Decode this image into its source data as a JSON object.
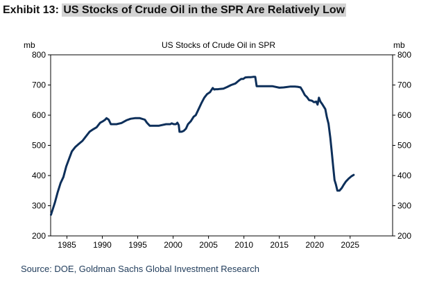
{
  "exhibit": {
    "label": "Exhibit 13:",
    "title": "US Stocks of Crude Oil in the SPR Are Relatively Low"
  },
  "source": "Source: DOE, Goldman Sachs Global Investment Research",
  "colors": {
    "line": "#0d2f5a",
    "axis": "#000000"
  },
  "chart_data": {
    "type": "line",
    "title": "US Stocks of Crude Oil in SPR",
    "ylabel_left": "mb",
    "ylabel_right": "mb",
    "xlim": [
      1982.7,
      2031
    ],
    "ylim": [
      200,
      800
    ],
    "yticks": [
      200,
      300,
      400,
      500,
      600,
      700,
      800
    ],
    "xticks": [
      1985,
      1990,
      1995,
      2000,
      2005,
      2010,
      2015,
      2020,
      2025
    ],
    "grid": false,
    "legend": "none",
    "series": [
      {
        "x": [
          1982.75,
          1983.3,
          1983.7,
          1984.1,
          1984.5,
          1984.9,
          1985.3,
          1985.7,
          1986.2,
          1986.7,
          1987.2,
          1987.7,
          1988.2,
          1988.7,
          1989.2,
          1989.7,
          1990.1,
          1990.4,
          1990.6,
          1990.9,
          1991.2,
          1992.0,
          1992.7,
          1993.4,
          1994.0,
          1994.6,
          1995.3,
          1996.0,
          1996.3,
          1996.7,
          1997.0,
          1997.4,
          1998.0,
          1999.0,
          1999.6,
          1999.8,
          2000.1,
          2000.4,
          2000.6,
          2000.8,
          2000.9,
          2001.2,
          2001.5,
          2001.8,
          2002.1,
          2002.5,
          2002.9,
          2003.2,
          2003.6,
          2004.0,
          2004.4,
          2004.8,
          2005.2,
          2005.6,
          2005.8,
          2006.0,
          2006.3,
          2006.6,
          2007.1,
          2007.6,
          2008.2,
          2008.8,
          2009.3,
          2009.6,
          2009.9,
          2010.2,
          2010.6,
          2011.0,
          2011.3,
          2011.6,
          2011.8,
          2012.3,
          2013.0,
          2014.0,
          2015.0,
          2015.6,
          2016.0,
          2016.6,
          2017.2,
          2017.6,
          2018.0,
          2018.3,
          2018.6,
          2018.9,
          2019.2,
          2019.6,
          2019.9,
          2020.2,
          2020.4,
          2020.6,
          2020.8,
          2021.1,
          2021.5,
          2021.7,
          2021.95,
          2022.2,
          2022.4,
          2022.6,
          2022.8,
          2023.0,
          2023.2,
          2023.5,
          2023.8,
          2024.1,
          2024.4,
          2024.8,
          2025.2,
          2025.5
        ],
        "y": [
          270,
          310,
          345,
          375,
          395,
          430,
          455,
          480,
          495,
          505,
          515,
          530,
          545,
          553,
          560,
          575,
          580,
          585,
          590,
          585,
          570,
          570,
          574,
          583,
          588,
          590,
          590,
          585,
          575,
          565,
          565,
          565,
          565,
          570,
          570,
          573,
          570,
          570,
          575,
          567,
          545,
          545,
          548,
          555,
          570,
          580,
          595,
          600,
          620,
          640,
          658,
          670,
          676,
          690,
          685,
          686,
          686,
          687,
          688,
          693,
          700,
          705,
          715,
          720,
          720,
          725,
          726,
          726,
          727,
          727,
          696,
          696,
          696,
          696,
          691,
          692,
          693,
          695,
          695,
          694,
          692,
          680,
          667,
          660,
          650,
          648,
          643,
          645,
          635,
          658,
          645,
          635,
          620,
          595,
          572,
          525,
          480,
          430,
          385,
          370,
          350,
          350,
          358,
          370,
          380,
          390,
          398,
          402
        ]
      }
    ]
  }
}
